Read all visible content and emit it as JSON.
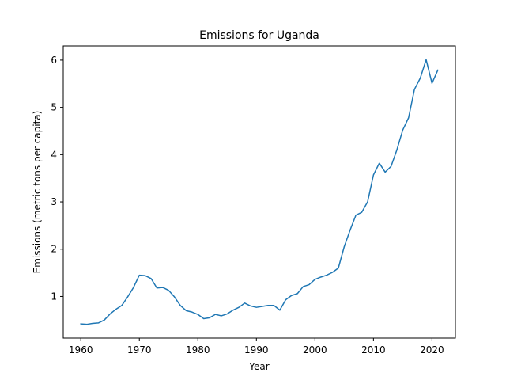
{
  "chart_data": {
    "type": "line",
    "title": "Emissions for Uganda",
    "xlabel": "Year",
    "ylabel": "Emissions (metric tons per capita)",
    "xlim": [
      1957,
      2024
    ],
    "ylim": [
      0.12,
      6.3
    ],
    "xticks": [
      1960,
      1970,
      1980,
      1990,
      2000,
      2010,
      2020
    ],
    "yticks": [
      1,
      2,
      3,
      4,
      5,
      6
    ],
    "grid": false,
    "legend": "none",
    "line_color": "#1f77b4",
    "series": [
      {
        "x": [
          1960,
          1961,
          1962,
          1963,
          1964,
          1965,
          1966,
          1967,
          1968,
          1969,
          1970,
          1971,
          1972,
          1973,
          1974,
          1975,
          1976,
          1977,
          1978,
          1979,
          1980,
          1981,
          1982,
          1983,
          1984,
          1985,
          1986,
          1987,
          1988,
          1989,
          1990,
          1991,
          1992,
          1993,
          1994,
          1995,
          1996,
          1997,
          1998,
          1999,
          2000,
          2001,
          2002,
          2003,
          2004,
          2005,
          2006,
          2007,
          2008,
          2009,
          2010,
          2011,
          2012,
          2013,
          2014,
          2015,
          2016,
          2017,
          2018,
          2019,
          2020,
          2021
        ],
        "values": [
          0.42,
          0.41,
          0.43,
          0.44,
          0.5,
          0.63,
          0.73,
          0.81,
          0.99,
          1.19,
          1.45,
          1.44,
          1.38,
          1.18,
          1.19,
          1.13,
          0.99,
          0.81,
          0.7,
          0.67,
          0.62,
          0.53,
          0.55,
          0.62,
          0.59,
          0.63,
          0.71,
          0.77,
          0.86,
          0.8,
          0.77,
          0.79,
          0.81,
          0.81,
          0.71,
          0.93,
          1.02,
          1.06,
          1.21,
          1.25,
          1.36,
          1.41,
          1.45,
          1.51,
          1.6,
          2.05,
          2.4,
          2.72,
          2.78,
          3.0,
          3.57,
          3.82,
          3.63,
          3.75,
          4.1,
          4.52,
          4.78,
          5.38,
          5.62,
          6.01,
          5.51,
          5.79
        ]
      }
    ]
  }
}
